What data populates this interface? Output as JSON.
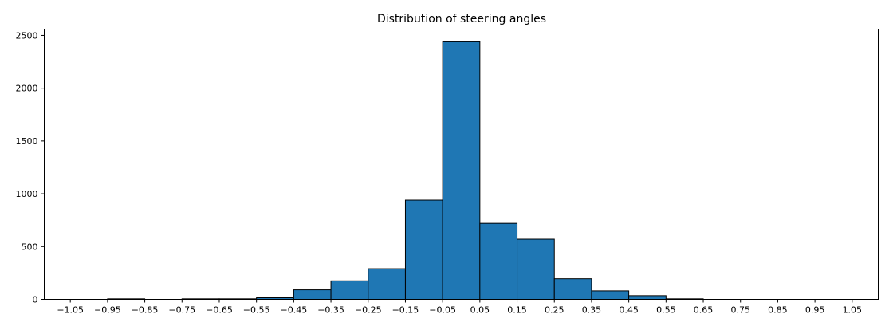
{
  "chart_data": {
    "type": "bar",
    "title": "Distribution of steering angles",
    "xlabel": "",
    "ylabel": "",
    "bar_color": "#1f77b4",
    "edge_color": "#000000",
    "xlim": [
      -1.12,
      1.12
    ],
    "ylim": [
      0,
      2560
    ],
    "x_ticks": [
      -1.05,
      -0.95,
      -0.85,
      -0.75,
      -0.65,
      -0.55,
      -0.45,
      -0.35,
      -0.25,
      -0.15,
      -0.05,
      0.05,
      0.15,
      0.25,
      0.35,
      0.45,
      0.55,
      0.65,
      0.75,
      0.85,
      0.95,
      1.05
    ],
    "x_tick_labels": [
      "−1.05",
      "−0.95",
      "−0.85",
      "−0.75",
      "−0.65",
      "−0.55",
      "−0.45",
      "−0.35",
      "−0.25",
      "−0.15",
      "−0.05",
      "0.05",
      "0.15",
      "0.25",
      "0.35",
      "0.45",
      "0.55",
      "0.65",
      "0.75",
      "0.85",
      "0.95",
      "1.05"
    ],
    "y_ticks": [
      0,
      500,
      1000,
      1500,
      2000,
      2500
    ],
    "y_tick_labels": [
      "0",
      "500",
      "1000",
      "1500",
      "2000",
      "2500"
    ],
    "bins": [
      {
        "x0": -0.95,
        "x1": -0.85,
        "count": 5
      },
      {
        "x0": -0.75,
        "x1": -0.65,
        "count": 5
      },
      {
        "x0": -0.65,
        "x1": -0.55,
        "count": 5
      },
      {
        "x0": -0.55,
        "x1": -0.45,
        "count": 15
      },
      {
        "x0": -0.45,
        "x1": -0.35,
        "count": 90
      },
      {
        "x0": -0.35,
        "x1": -0.25,
        "count": 175
      },
      {
        "x0": -0.25,
        "x1": -0.15,
        "count": 290
      },
      {
        "x0": -0.15,
        "x1": -0.05,
        "count": 940
      },
      {
        "x0": -0.05,
        "x1": 0.05,
        "count": 2440
      },
      {
        "x0": 0.05,
        "x1": 0.15,
        "count": 720
      },
      {
        "x0": 0.15,
        "x1": 0.25,
        "count": 570
      },
      {
        "x0": 0.25,
        "x1": 0.35,
        "count": 195
      },
      {
        "x0": 0.35,
        "x1": 0.45,
        "count": 80
      },
      {
        "x0": 0.45,
        "x1": 0.55,
        "count": 35
      },
      {
        "x0": 0.55,
        "x1": 0.65,
        "count": 5
      }
    ]
  }
}
